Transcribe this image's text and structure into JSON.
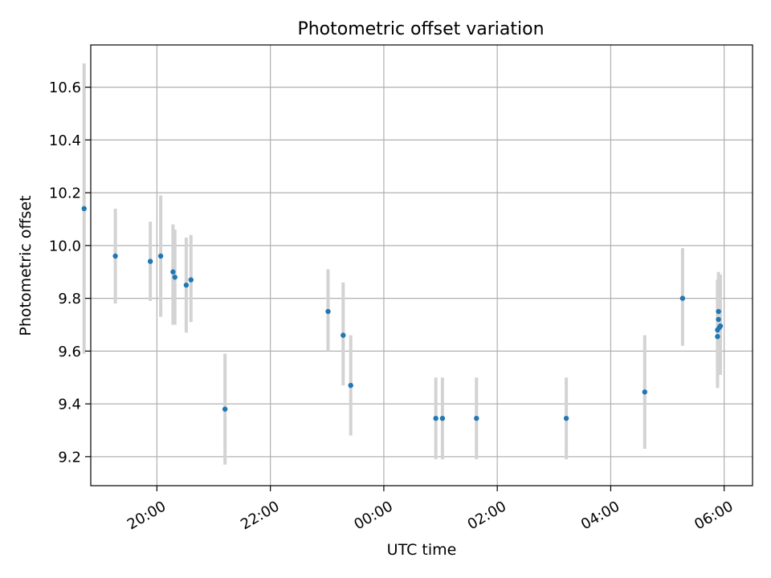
{
  "chart_data": {
    "type": "scatter",
    "title": "Photometric offset variation",
    "xlabel": "UTC time",
    "ylabel": "Photometric offset",
    "x_axis": {
      "kind": "time",
      "range": [
        "18:50",
        "06:30"
      ],
      "ticks": [
        "20:00",
        "22:00",
        "00:00",
        "02:00",
        "04:00",
        "06:00"
      ]
    },
    "y_axis": {
      "range": [
        9.09,
        10.76
      ],
      "ticks": [
        "9.2",
        "9.4",
        "9.6",
        "9.8",
        "10.0",
        "10.2",
        "10.4",
        "10.6"
      ]
    },
    "grid": true,
    "colors": {
      "point": "#1f77b4",
      "errorbar": "#d3d3d3",
      "grid": "#b0b0b0",
      "axis": "#000000"
    },
    "points": [
      {
        "time": "18:43",
        "y": 10.14,
        "ylow": 9.59,
        "yhigh": 10.69
      },
      {
        "time": "19:16",
        "y": 9.96,
        "ylow": 9.78,
        "yhigh": 10.14
      },
      {
        "time": "19:53",
        "y": 9.94,
        "ylow": 9.79,
        "yhigh": 10.09
      },
      {
        "time": "20:04",
        "y": 9.96,
        "ylow": 9.73,
        "yhigh": 10.19
      },
      {
        "time": "20:17",
        "y": 9.9,
        "ylow": 9.7,
        "yhigh": 10.08
      },
      {
        "time": "20:19",
        "y": 9.88,
        "ylow": 9.7,
        "yhigh": 10.06
      },
      {
        "time": "20:31",
        "y": 9.85,
        "ylow": 9.67,
        "yhigh": 10.03
      },
      {
        "time": "20:36",
        "y": 9.87,
        "ylow": 9.71,
        "yhigh": 10.04
      },
      {
        "time": "21:12",
        "y": 9.38,
        "ylow": 9.17,
        "yhigh": 9.59
      },
      {
        "time": "23:01",
        "y": 9.75,
        "ylow": 9.6,
        "yhigh": 9.91
      },
      {
        "time": "23:17",
        "y": 9.66,
        "ylow": 9.47,
        "yhigh": 9.86
      },
      {
        "time": "23:25",
        "y": 9.47,
        "ylow": 9.28,
        "yhigh": 9.66
      },
      {
        "time": "00:55",
        "y": 9.345,
        "ylow": 9.19,
        "yhigh": 9.5
      },
      {
        "time": "01:02",
        "y": 9.345,
        "ylow": 9.19,
        "yhigh": 9.5
      },
      {
        "time": "01:38",
        "y": 9.345,
        "ylow": 9.19,
        "yhigh": 9.5
      },
      {
        "time": "03:13",
        "y": 9.345,
        "ylow": 9.19,
        "yhigh": 9.5
      },
      {
        "time": "04:36",
        "y": 9.445,
        "ylow": 9.23,
        "yhigh": 9.66
      },
      {
        "time": "05:16",
        "y": 9.8,
        "ylow": 9.62,
        "yhigh": 9.99
      },
      {
        "time": "05:53",
        "y": 9.655,
        "ylow": 9.46,
        "yhigh": 9.87
      },
      {
        "time": "05:53",
        "y": 9.68,
        "ylow": 9.49,
        "yhigh": 9.87
      },
      {
        "time": "05:54",
        "y": 9.75,
        "ylow": 9.56,
        "yhigh": 9.88
      },
      {
        "time": "05:54",
        "y": 9.72,
        "ylow": 9.54,
        "yhigh": 9.9
      },
      {
        "time": "05:55",
        "y": 9.69,
        "ylow": 9.51,
        "yhigh": 9.88
      },
      {
        "time": "05:56",
        "y": 9.695,
        "ylow": 9.51,
        "yhigh": 9.89
      }
    ]
  }
}
